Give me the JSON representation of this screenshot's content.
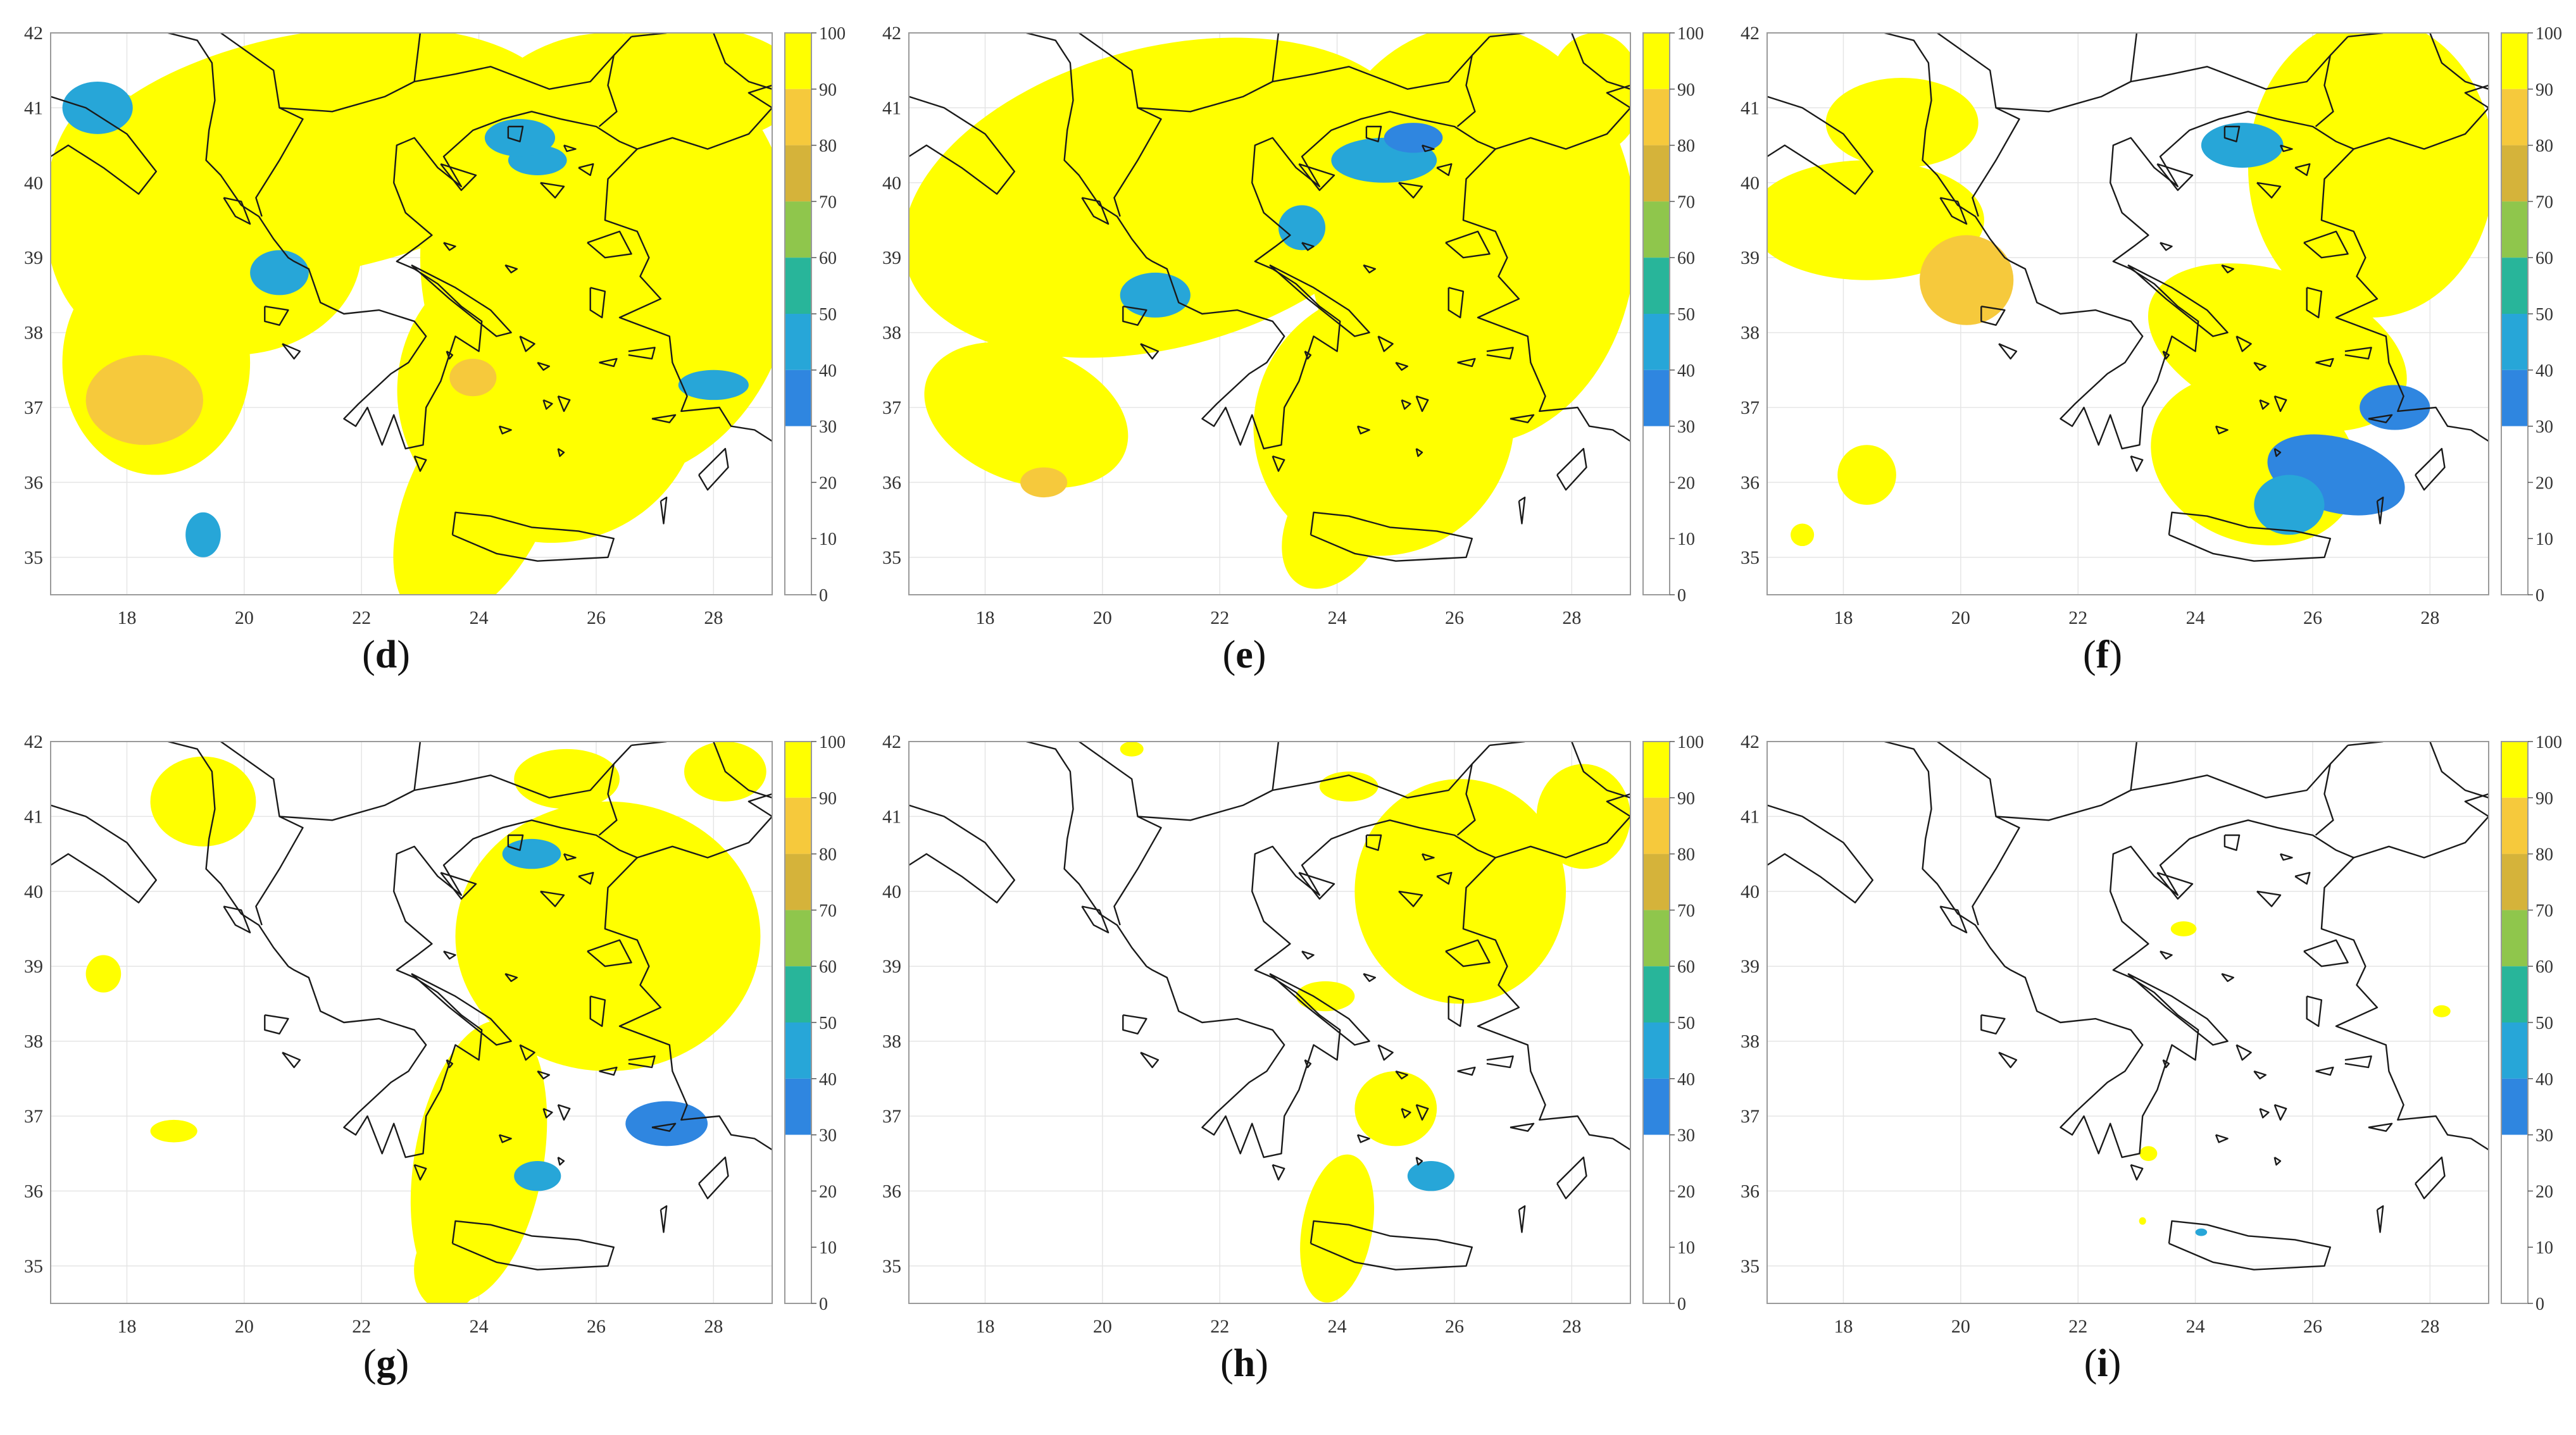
{
  "figure": {
    "panels": [
      {
        "id": "d",
        "caption": "d",
        "coverage": "very-high"
      },
      {
        "id": "e",
        "caption": "e",
        "coverage": "high"
      },
      {
        "id": "f",
        "caption": "f",
        "coverage": "east"
      },
      {
        "id": "g",
        "caption": "g",
        "coverage": "moderate"
      },
      {
        "id": "h",
        "caption": "h",
        "coverage": "low"
      },
      {
        "id": "i",
        "caption": "i",
        "coverage": "minimal"
      }
    ],
    "x_ticks": [
      "18",
      "20",
      "22",
      "24",
      "26",
      "28"
    ],
    "y_ticks": [
      "42",
      "41",
      "40",
      "39",
      "38",
      "37",
      "36",
      "35"
    ],
    "colorbar_ticks": [
      "100",
      "90",
      "80",
      "70",
      "60",
      "50",
      "40",
      "30",
      "20",
      "10",
      "0"
    ],
    "colors": {
      "c100": "#ffff00",
      "c90": "#f6c93c",
      "c80": "#d5b33a",
      "c70": "#8fc64c",
      "c60": "#28b59a",
      "c50": "#27a6d8",
      "c40": "#2f86e0",
      "c30": "#ffffff",
      "border": "#1a1a1a",
      "grid": "#e5e5e5",
      "frame": "#9a9a9a"
    }
  }
}
